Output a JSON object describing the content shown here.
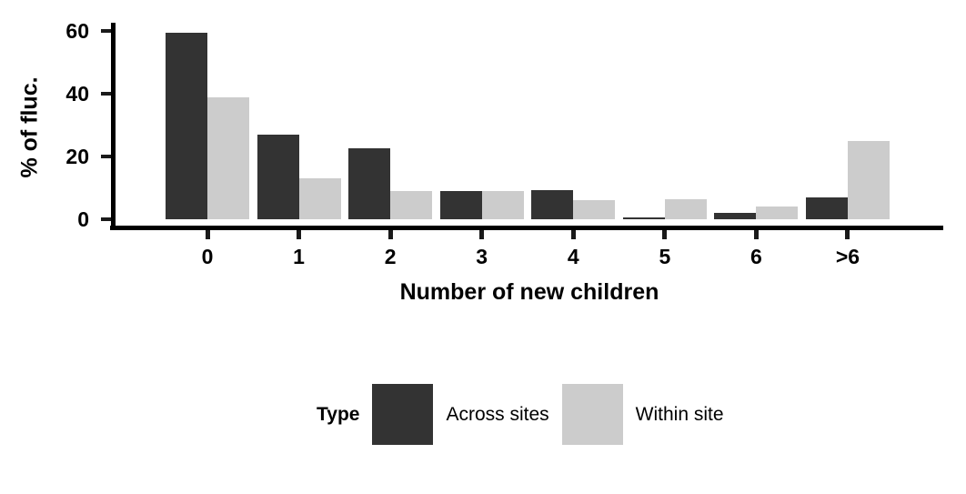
{
  "chart_data": {
    "type": "bar",
    "grouping": "dodged",
    "title": "",
    "xlabel": "Number of new children",
    "ylabel": "% of fluc.",
    "categories": [
      "0",
      "1",
      "2",
      "3",
      "4",
      "5",
      "6",
      ">6"
    ],
    "series": [
      {
        "name": "Across sites",
        "color": "#333333",
        "values": [
          59.5,
          26.9,
          22.7,
          9.0,
          9.2,
          0.6,
          2.1,
          6.9
        ]
      },
      {
        "name": "Within site",
        "color": "#cccccc",
        "values": [
          39.0,
          13.0,
          9.0,
          9.0,
          6.2,
          6.5,
          4.2,
          24.9
        ]
      }
    ],
    "y_ticks": [
      0,
      20,
      40,
      60
    ],
    "ylim": [
      0,
      62.7
    ],
    "grid": false,
    "legend": {
      "title": "Type",
      "position": "bottom"
    },
    "axis_color": "#000000",
    "background": "#ffffff"
  }
}
